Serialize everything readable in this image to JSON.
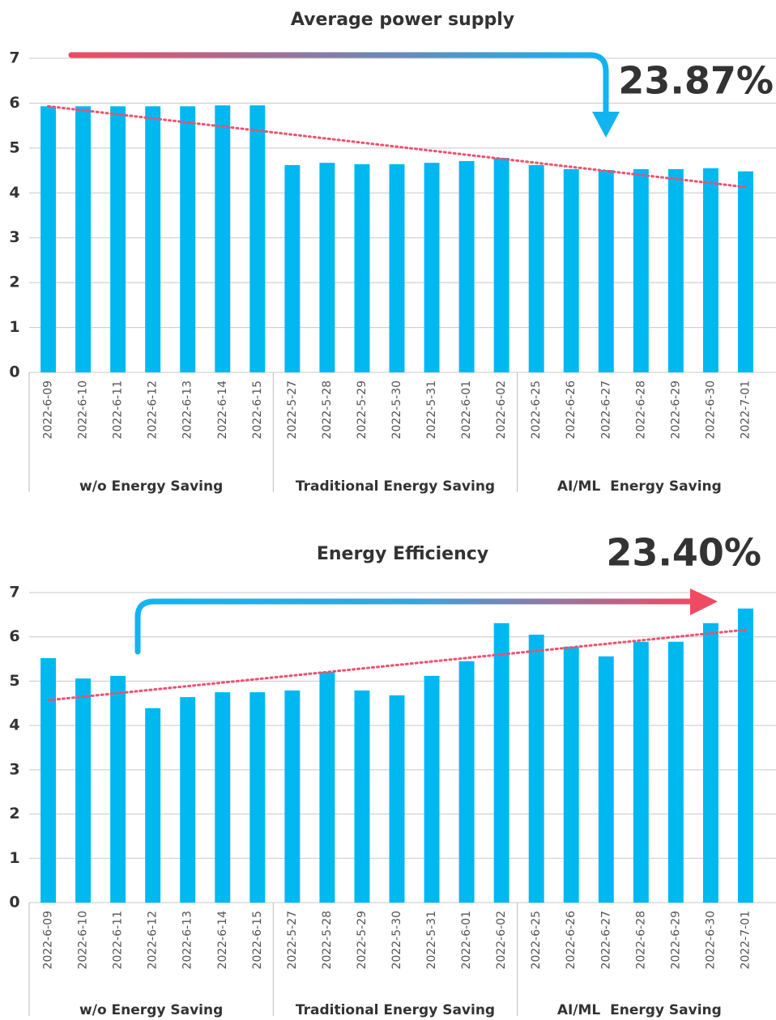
{
  "chart_data": [
    {
      "type": "bar",
      "title": "Average power supply",
      "annotation": "23.87%",
      "categories": [
        "2022-6-09",
        "2022-6-10",
        "2022-6-11",
        "2022-6-12",
        "2022-6-13",
        "2022-6-14",
        "2022-6-15",
        "2022-5-27",
        "2022-5-28",
        "2022-5-29",
        "2022-5-30",
        "2022-5-31",
        "2022-6-01",
        "2022-6-02",
        "2022-6-25",
        "2022-6-26",
        "2022-6-27",
        "2022-6-28",
        "2022-6-29",
        "2022-6-30",
        "2022-7-01"
      ],
      "groups": [
        "w/o Energy Saving",
        "Traditional Energy Saving",
        "AI/ML  Energy Saving"
      ],
      "values": [
        5.93,
        5.93,
        5.93,
        5.93,
        5.93,
        5.95,
        5.95,
        4.62,
        4.67,
        4.64,
        4.64,
        4.67,
        4.71,
        4.78,
        4.62,
        4.53,
        4.51,
        4.53,
        4.53,
        4.55,
        4.48
      ],
      "color": "#00b8f0",
      "trendline": {
        "start": 5.93,
        "end": 4.13,
        "color": "#f0506e"
      },
      "ylim": [
        0,
        7
      ],
      "yticks": [
        0,
        1,
        2,
        3,
        4,
        5,
        6,
        7
      ],
      "grid": true
    },
    {
      "type": "bar",
      "title": "Energy Efficiency",
      "annotation": "23.40%",
      "categories": [
        "2022-6-09",
        "2022-6-10",
        "2022-6-11",
        "2022-6-12",
        "2022-6-13",
        "2022-6-14",
        "2022-6-15",
        "2022-5-27",
        "2022-5-28",
        "2022-5-29",
        "2022-5-30",
        "2022-5-31",
        "2022-6-01",
        "2022-6-02",
        "2022-6-25",
        "2022-6-26",
        "2022-6-27",
        "2022-6-28",
        "2022-6-29",
        "2022-6-30",
        "2022-7-01"
      ],
      "groups": [
        "w/o Energy Saving",
        "Traditional Energy Saving",
        "AI/ML  Energy Saving"
      ],
      "values": [
        5.52,
        5.06,
        5.12,
        4.39,
        4.64,
        4.75,
        4.75,
        4.79,
        5.21,
        4.79,
        4.68,
        5.12,
        5.45,
        6.31,
        6.05,
        5.78,
        5.56,
        5.89,
        5.89,
        6.31,
        6.64
      ],
      "color": "#00b8f0",
      "trendline": {
        "start": 4.57,
        "end": 6.16,
        "color": "#f0506e"
      },
      "ylim": [
        0,
        7
      ],
      "yticks": [
        0,
        1,
        2,
        3,
        4,
        5,
        6,
        7
      ],
      "grid": true
    }
  ]
}
